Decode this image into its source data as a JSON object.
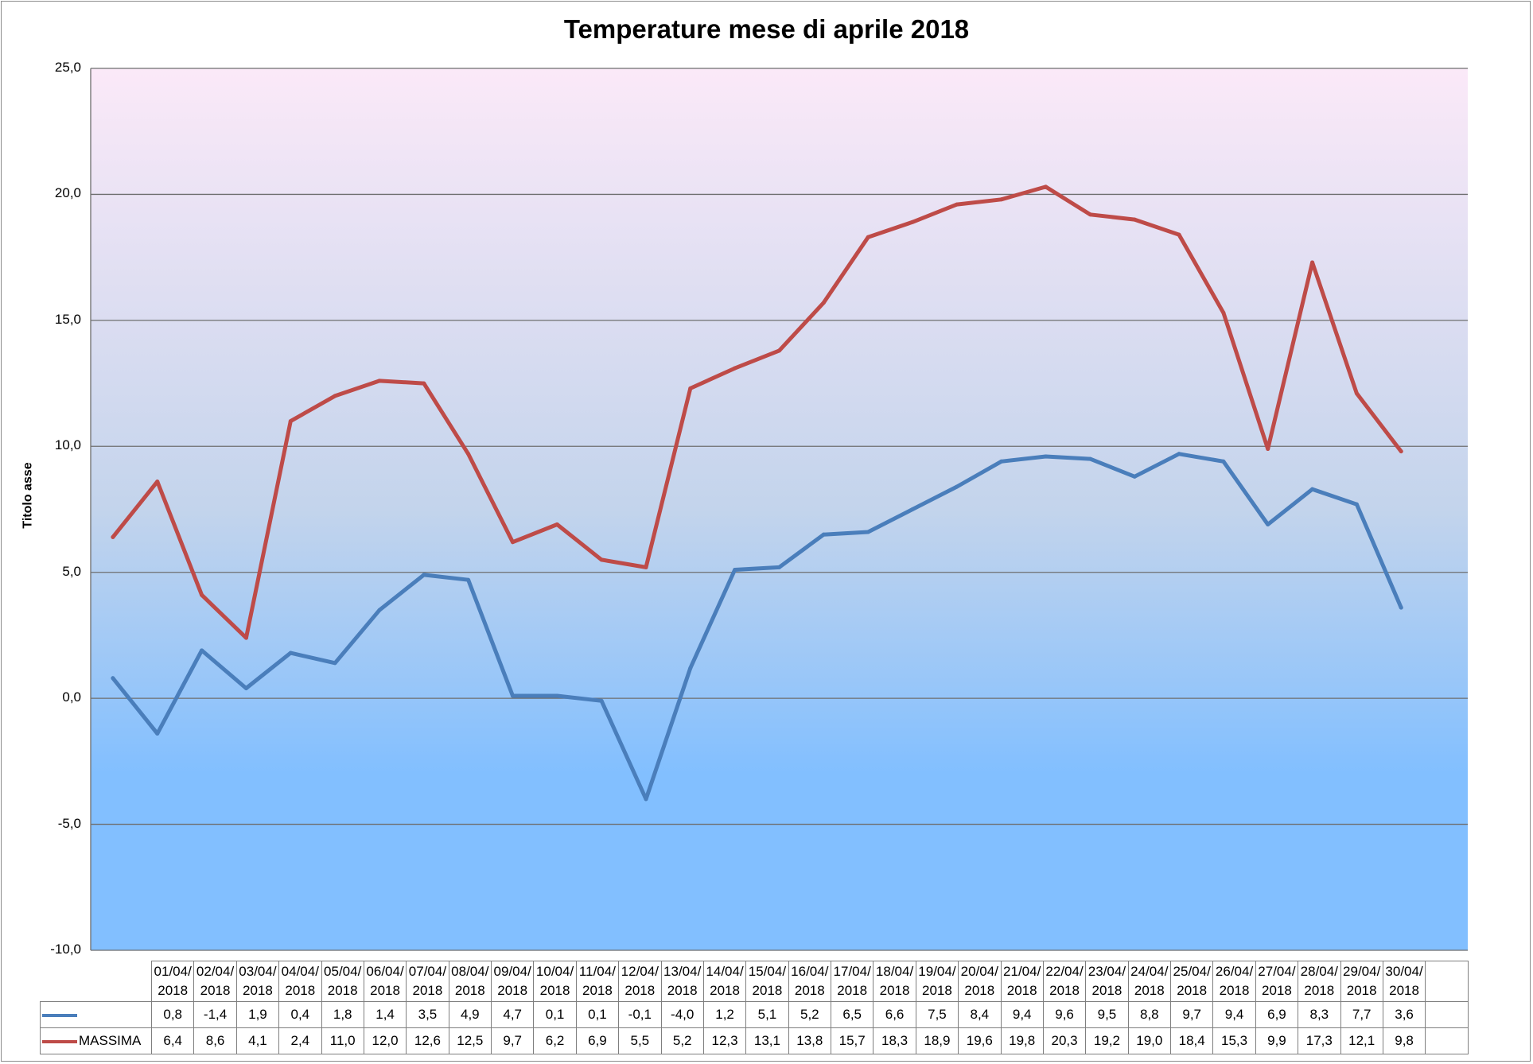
{
  "chart_data": {
    "type": "line",
    "title": "Temperature mese di aprile 2018",
    "ylabel": "Titolo asse",
    "ylim": [
      -10,
      25
    ],
    "ytick_step": 5,
    "ytick_labels": [
      "25,0",
      "20,0",
      "15,0",
      "10,0",
      "5,0",
      "0,0",
      "-5,0",
      "-10,0"
    ],
    "grid": true,
    "legend": "data-table",
    "categories": [
      "01/04/2018",
      "02/04/2018",
      "03/04/2018",
      "04/04/2018",
      "05/04/2018",
      "06/04/2018",
      "07/04/2018",
      "08/04/2018",
      "09/04/2018",
      "10/04/2018",
      "11/04/2018",
      "12/04/2018",
      "13/04/2018",
      "14/04/2018",
      "15/04/2018",
      "16/04/2018",
      "17/04/2018",
      "18/04/2018",
      "19/04/2018",
      "20/04/2018",
      "21/04/2018",
      "22/04/2018",
      "23/04/2018",
      "24/04/2018",
      "25/04/2018",
      "26/04/2018",
      "27/04/2018",
      "28/04/2018",
      "29/04/2018",
      "30/04/2018"
    ],
    "series": [
      {
        "name": "",
        "color": "#4a7ebb",
        "values": [
          0.8,
          -1.4,
          1.9,
          0.4,
          1.8,
          1.4,
          3.5,
          4.9,
          4.7,
          0.1,
          0.1,
          -0.1,
          -4.0,
          1.2,
          5.1,
          5.2,
          6.5,
          6.6,
          7.5,
          8.4,
          9.4,
          9.6,
          9.5,
          8.8,
          9.7,
          9.4,
          6.9,
          8.3,
          7.7,
          3.6
        ],
        "labels": [
          "0,8",
          "-1,4",
          "1,9",
          "0,4",
          "1,8",
          "1,4",
          "3,5",
          "4,9",
          "4,7",
          "0,1",
          "0,1",
          "-0,1",
          "-4,0",
          "1,2",
          "5,1",
          "5,2",
          "6,5",
          "6,6",
          "7,5",
          "8,4",
          "9,4",
          "9,6",
          "9,5",
          "8,8",
          "9,7",
          "9,4",
          "6,9",
          "8,3",
          "7,7",
          "3,6"
        ]
      },
      {
        "name": "MASSIMA",
        "color": "#be4b48",
        "values": [
          6.4,
          8.6,
          4.1,
          2.4,
          11.0,
          12.0,
          12.6,
          12.5,
          9.7,
          6.2,
          6.9,
          5.5,
          5.2,
          12.3,
          13.1,
          13.8,
          15.7,
          18.3,
          18.9,
          19.6,
          19.8,
          20.3,
          19.2,
          19.0,
          18.4,
          15.3,
          9.9,
          17.3,
          12.1,
          9.8
        ],
        "labels": [
          "6,4",
          "8,6",
          "4,1",
          "2,4",
          "11,0",
          "12,0",
          "12,6",
          "12,5",
          "9,7",
          "6,2",
          "6,9",
          "5,5",
          "5,2",
          "12,3",
          "13,1",
          "13,8",
          "15,7",
          "18,3",
          "18,9",
          "19,6",
          "19,8",
          "20,3",
          "19,2",
          "19,0",
          "18,4",
          "15,3",
          "9,9",
          "17,3",
          "12,1",
          "9,8"
        ]
      }
    ],
    "plot_colors": {
      "top": "#fbe9f8",
      "mid": "#c3d4ec",
      "bottom": "#82bfff",
      "gridline": "#6e6e6e"
    }
  }
}
